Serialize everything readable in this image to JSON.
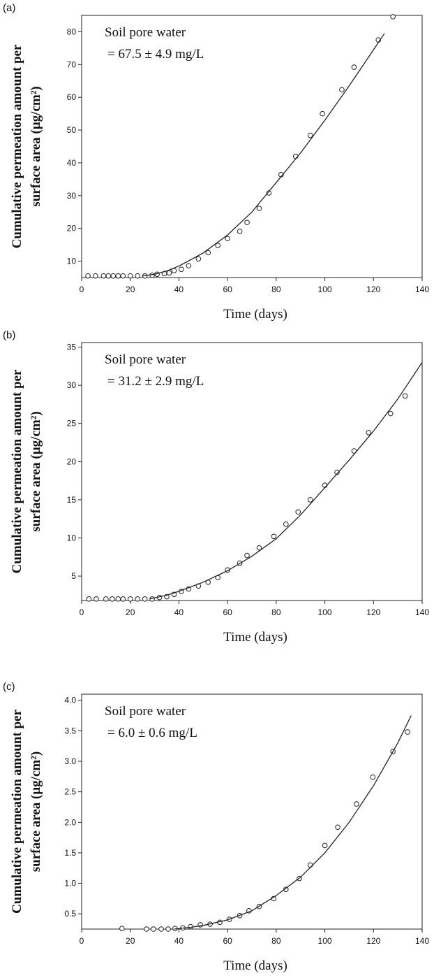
{
  "chart_data": [
    {
      "type": "scatter",
      "panel_label": "(a)",
      "ylabel": [
        "Cumulative permeation amount per",
        "surface area (µg/cm²)"
      ],
      "xlabel": "Time (days)",
      "annotations": [
        "Soil pore water",
        "= 67.5 ± 4.9 mg/L"
      ],
      "xlim": [
        0,
        140
      ],
      "xticks": [
        0,
        20,
        40,
        60,
        80,
        100,
        120,
        140
      ],
      "ylim": [
        5,
        85
      ],
      "yticks": [
        10,
        20,
        30,
        40,
        50,
        60,
        70,
        80
      ],
      "series": [
        {
          "mode": "markers",
          "color": "#222",
          "x": [
            2.6,
            5.7,
            9,
            11,
            13,
            15,
            17,
            20,
            23,
            26,
            29,
            31,
            34,
            36,
            38,
            41,
            44,
            48,
            52,
            56,
            60,
            65,
            68,
            73,
            77,
            82,
            88,
            94,
            99,
            107,
            112,
            122,
            128
          ],
          "values": [
            5.5,
            5.5,
            5.5,
            5.5,
            5.5,
            5.5,
            5.5,
            5.5,
            5.5,
            5.5,
            5.7,
            6,
            6.2,
            6.4,
            7.1,
            7.5,
            8.6,
            10.7,
            12.6,
            14.8,
            16.9,
            19.1,
            21.8,
            26.1,
            30.8,
            36.4,
            42,
            48.4,
            55,
            62.3,
            69.2,
            77.5,
            84.6
          ]
        },
        {
          "mode": "line",
          "color": "#222",
          "x": [
            25,
            30,
            35,
            40,
            50,
            60,
            70,
            80,
            90,
            100,
            110,
            120,
            124.5
          ],
          "values": [
            5.5,
            6,
            7,
            8.5,
            12.5,
            18,
            25,
            34,
            43,
            53,
            63.5,
            74.5,
            79.5
          ]
        }
      ]
    },
    {
      "type": "scatter",
      "panel_label": "(b)",
      "ylabel": [
        "Cumulative permeation amount per",
        "surface area (µg/cm²)"
      ],
      "xlabel": "Time (days)",
      "annotations": [
        "Soil pore water",
        "= 31.2 ± 2.9 mg/L"
      ],
      "xlim": [
        0,
        140
      ],
      "xticks": [
        0,
        20,
        40,
        60,
        80,
        100,
        120,
        140
      ],
      "ylim": [
        1.8,
        35.6
      ],
      "yticks": [
        5,
        10,
        15,
        20,
        25,
        30,
        35
      ],
      "series": [
        {
          "mode": "markers",
          "color": "#222",
          "x": [
            3,
            6,
            10,
            12.6,
            15,
            17,
            20,
            23,
            26,
            29,
            32,
            35,
            38,
            41,
            44,
            48,
            52,
            56,
            60,
            65,
            68,
            73,
            79,
            84,
            89,
            94,
            100,
            105,
            112,
            118,
            127,
            133
          ],
          "values": [
            2,
            2,
            2,
            2,
            2,
            2,
            2,
            2,
            2,
            2,
            2.2,
            2.3,
            2.6,
            3,
            3.3,
            3.7,
            4.2,
            4.8,
            5.8,
            6.7,
            7.7,
            8.7,
            10.2,
            11.8,
            13.4,
            15,
            16.9,
            18.6,
            21.4,
            23.8,
            26.3,
            28.6
          ]
        },
        {
          "mode": "line",
          "color": "#222",
          "x": [
            28,
            35,
            40,
            50,
            60,
            70,
            80,
            90,
            100,
            110,
            120,
            130,
            140
          ],
          "values": [
            2,
            2.5,
            3,
            4.2,
            5.7,
            7.6,
            9.9,
            13,
            16.6,
            20.2,
            24,
            28.2,
            33
          ]
        }
      ]
    },
    {
      "type": "scatter",
      "panel_label": "(c)",
      "ylabel": [
        "Cumulative permeation amount per",
        "surface area (µg/cm²)"
      ],
      "xlabel": "Time (days)",
      "annotations": [
        "Soil pore water",
        "= 6.0 ± 0.6 mg/L"
      ],
      "xlim": [
        0,
        140
      ],
      "xticks": [
        0,
        20,
        40,
        60,
        80,
        100,
        120,
        140
      ],
      "ylim": [
        0.25,
        4.1
      ],
      "yticks": [
        0.5,
        {
          "value": 1,
          "label": "1.0"
        },
        1.5,
        {
          "value": 2,
          "label": "2.0"
        },
        2.5,
        {
          "value": 3,
          "label": "3.0"
        },
        3.5,
        {
          "value": 4,
          "label": "4.0"
        }
      ],
      "series": [
        {
          "mode": "markers",
          "color": "#222",
          "x": [
            16.6,
            26.7,
            29.5,
            32.7,
            35.6,
            38.4,
            41.6,
            44.8,
            48.8,
            52.8,
            56.8,
            60.8,
            65,
            68.8,
            73,
            79,
            84,
            89.5,
            94,
            100,
            105.3,
            113,
            119.7,
            128,
            134
          ],
          "values": [
            0.26,
            0.25,
            0.25,
            0.25,
            0.25,
            0.26,
            0.27,
            0.29,
            0.32,
            0.33,
            0.36,
            0.41,
            0.47,
            0.55,
            0.62,
            0.75,
            0.9,
            1.08,
            1.3,
            1.62,
            1.92,
            2.3,
            2.74,
            3.16,
            3.48
          ]
        },
        {
          "mode": "line",
          "color": "#222",
          "x": [
            38,
            45,
            50,
            60,
            70,
            80,
            90,
            100,
            110,
            120,
            130,
            135.5
          ],
          "values": [
            0.25,
            0.28,
            0.31,
            0.4,
            0.55,
            0.8,
            1.1,
            1.5,
            2,
            2.6,
            3.3,
            3.75
          ]
        }
      ]
    }
  ]
}
